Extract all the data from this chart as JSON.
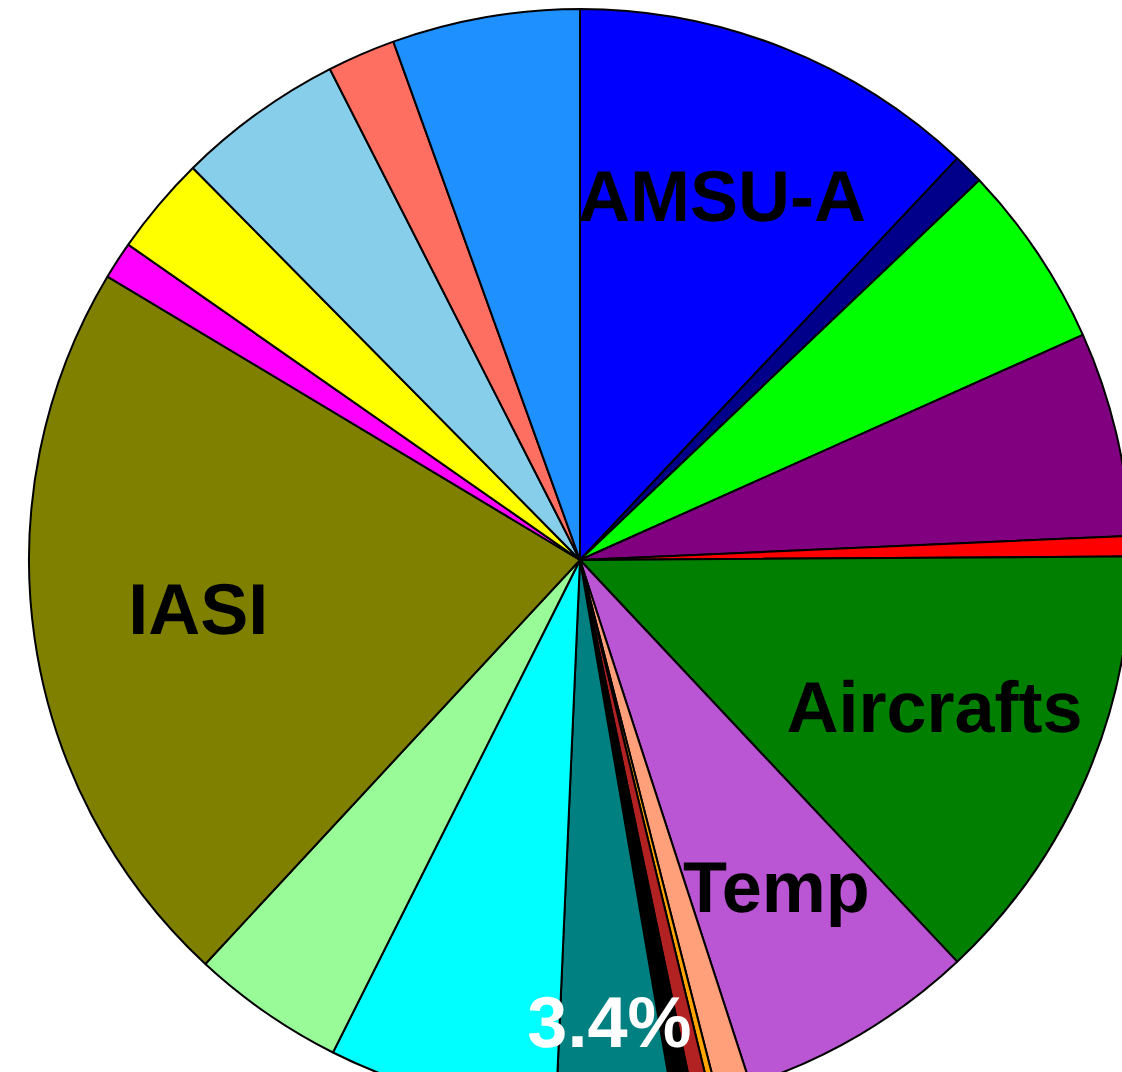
{
  "chart_data": {
    "type": "pie",
    "categories": [
      "AMSU-A",
      null,
      null,
      null,
      null,
      "Aircrafts",
      "Temp",
      null,
      null,
      null,
      null,
      null,
      null,
      null,
      "IASI",
      null,
      null,
      null,
      null,
      null
    ],
    "values": [
      12.0,
      0.9,
      5.4,
      6.0,
      0.6,
      13.1,
      7.0,
      1.0,
      0.2,
      0.5,
      0.6,
      3.4,
      6.7,
      4.5,
      21.7,
      1.1,
      2.9,
      4.9,
      2.0,
      5.5
    ],
    "colors": [
      "#0000ff",
      "#00008b",
      "#00ff00",
      "#800080",
      "#ff0000",
      "#007f00",
      "#ba55d3",
      "#ffa07a",
      "#ffa500",
      "#b22222",
      "#000000",
      "#008080",
      "#00ffff",
      "#98fb98",
      "#808000",
      "#ff00ff",
      "#ffff00",
      "#87ceeb",
      "#ff6f61",
      "#1e90ff"
    ],
    "value_labels": [
      null,
      null,
      null,
      null,
      null,
      null,
      null,
      null,
      null,
      null,
      null,
      "3.4%",
      null,
      null,
      null,
      null,
      null,
      null,
      null,
      null
    ],
    "legend": false
  }
}
